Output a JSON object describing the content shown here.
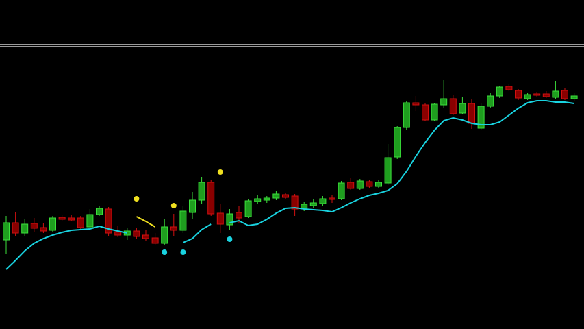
{
  "chart_data": {
    "type": "candlestick",
    "up_color": "#1f9e1f",
    "up_edge": "#3be03b",
    "down_color": "#8a0000",
    "down_edge": "#d01010",
    "ylim": [
      0,
      480
    ],
    "open": [
      130,
      155,
      140,
      154,
      148,
      144,
      163,
      162,
      162,
      149,
      167,
      175,
      142,
      137,
      143,
      137,
      133,
      125,
      149,
      144,
      170,
      188,
      214,
      169,
      152,
      170,
      164,
      186,
      188,
      191,
      196,
      194,
      175,
      180,
      183,
      191,
      190,
      214,
      205,
      215,
      208,
      213,
      251,
      294,
      330,
      327,
      305,
      327,
      336,
      315,
      329,
      293,
      325,
      340,
      354,
      348,
      336,
      343,
      343,
      338,
      348,
      336
    ],
    "high": [
      165,
      170,
      160,
      162,
      155,
      165,
      167,
      166,
      165,
      175,
      180,
      178,
      150,
      147,
      148,
      145,
      140,
      160,
      168,
      180,
      200,
      222,
      218,
      182,
      175,
      180,
      190,
      195,
      194,
      202,
      198,
      197,
      186,
      190,
      194,
      196,
      216,
      220,
      219,
      218,
      217,
      270,
      296,
      332,
      340,
      330,
      330,
      363,
      342,
      339,
      336,
      330,
      344,
      355,
      357,
      350,
      344,
      346,
      347,
      362,
      352,
      344
    ],
    "low": [
      110,
      135,
      135,
      142,
      140,
      142,
      158,
      157,
      146,
      147,
      165,
      136,
      134,
      130,
      132,
      128,
      122,
      122,
      135,
      140,
      160,
      183,
      165,
      140,
      145,
      155,
      162,
      183,
      184,
      188,
      190,
      165,
      172,
      177,
      180,
      184,
      188,
      203,
      203,
      205,
      206,
      210,
      248,
      290,
      318,
      303,
      303,
      322,
      312,
      313,
      292,
      290,
      323,
      337,
      347,
      334,
      334,
      339,
      337,
      335,
      334,
      332
    ],
    "close": [
      155,
      140,
      153,
      147,
      143,
      162,
      160,
      159,
      148,
      167,
      176,
      140,
      137,
      143,
      135,
      132,
      125,
      149,
      144,
      172,
      188,
      214,
      168,
      153,
      168,
      162,
      187,
      190,
      191,
      197,
      192,
      175,
      182,
      184,
      190,
      189,
      213,
      205,
      216,
      208,
      214,
      250,
      294,
      330,
      327,
      305,
      328,
      336,
      314,
      329,
      300,
      325,
      340,
      353,
      349,
      337,
      342,
      341,
      339,
      347,
      336,
      340
    ],
    "lines": [
      {
        "color": "#19d3e0",
        "values": [
          87,
          100,
          114,
          125,
          132,
          137,
          141,
          144,
          145,
          146,
          150,
          146,
          143,
          140,
          null,
          null,
          null,
          null,
          null,
          126,
          132,
          145,
          153,
          null,
          155,
          158,
          151,
          153,
          160,
          169,
          176,
          177,
          175,
          174,
          173,
          171,
          177,
          184,
          190,
          195,
          198,
          202,
          212,
          230,
          252,
          272,
          290,
          304,
          308,
          305,
          300,
          298,
          298,
          302,
          312,
          322,
          330,
          333,
          333,
          331,
          331,
          329
        ]
      },
      {
        "color": "#f0e020",
        "values": [
          null,
          null,
          null,
          null,
          null,
          null,
          null,
          null,
          null,
          null,
          null,
          null,
          null,
          null,
          164,
          157,
          149,
          null,
          null,
          null,
          null,
          null,
          null,
          null,
          null,
          null,
          null,
          null,
          null,
          null,
          null,
          null,
          null,
          null,
          null,
          null,
          null,
          null,
          null,
          null,
          null,
          null,
          null,
          null,
          null,
          null,
          null,
          null,
          null,
          null,
          null,
          null,
          null,
          null,
          null,
          null,
          null,
          null,
          null,
          null,
          null,
          null
        ]
      }
    ],
    "markers": [
      {
        "color": "#f0e020",
        "values": [
          null,
          null,
          null,
          null,
          null,
          null,
          null,
          null,
          null,
          null,
          null,
          null,
          null,
          null,
          190,
          null,
          null,
          null,
          180,
          null,
          null,
          null,
          null,
          229,
          null,
          null,
          null,
          null,
          null,
          null,
          null,
          null,
          null,
          null,
          null,
          null,
          null,
          null,
          null,
          null,
          null,
          null,
          null,
          null,
          null,
          null,
          null,
          null,
          null,
          null,
          null,
          null,
          null,
          null,
          null,
          null,
          null,
          null,
          null,
          null,
          null,
          null
        ]
      },
      {
        "color": "#19d3e0",
        "values": [
          null,
          null,
          null,
          null,
          null,
          null,
          null,
          null,
          null,
          null,
          null,
          null,
          null,
          null,
          null,
          null,
          null,
          112,
          null,
          112,
          null,
          null,
          null,
          null,
          131,
          null,
          null,
          null,
          null,
          null,
          null,
          null,
          null,
          null,
          null,
          null,
          null,
          null,
          null,
          null,
          null,
          null,
          null,
          null,
          null,
          null,
          null,
          null,
          null,
          null,
          null,
          null,
          null,
          null,
          null,
          null,
          null,
          null,
          null,
          null,
          null,
          null
        ]
      }
    ]
  }
}
